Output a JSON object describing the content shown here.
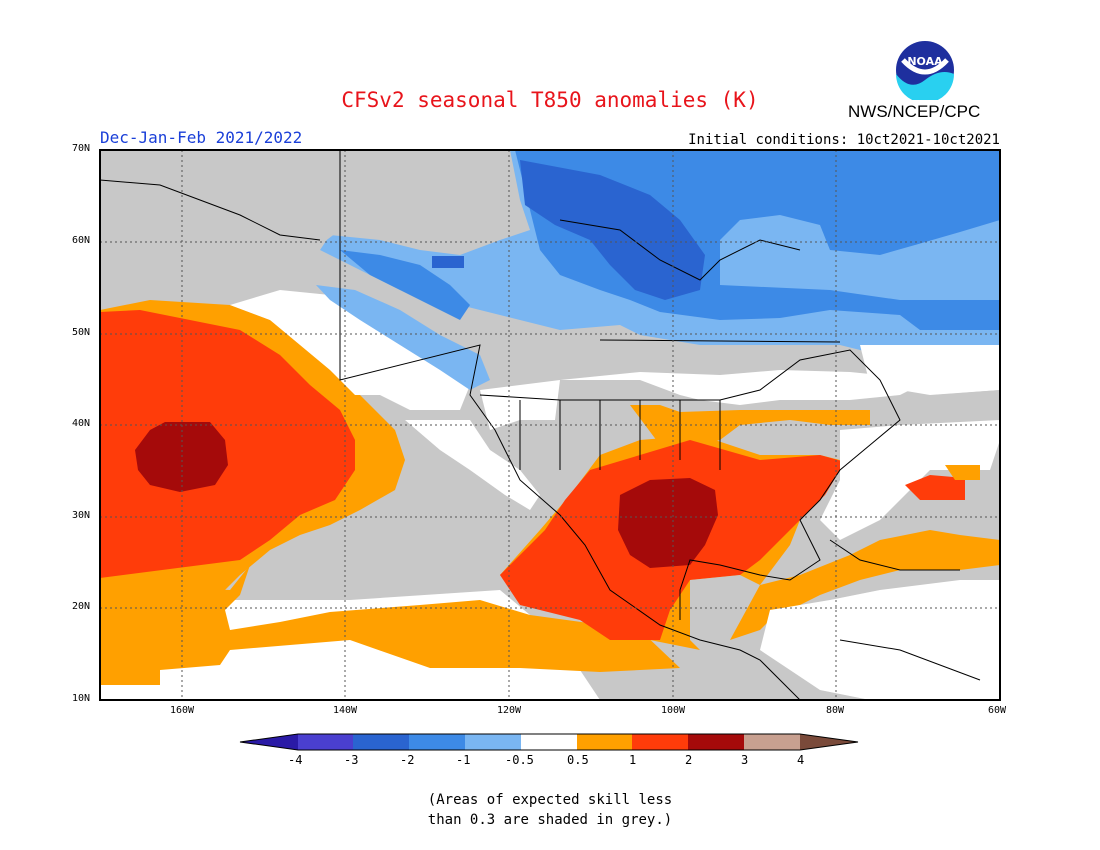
{
  "title": "CFSv2 seasonal T850 anomalies (K)",
  "agency": "NWS/NCEP/CPC",
  "logo_text": "NOAA",
  "season_label": "Dec-Jan-Feb 2021/2022",
  "init_label": "Initial conditions: 10ct2021-10ct2021",
  "lat_labels": [
    "70N",
    "60N",
    "50N",
    "40N",
    "30N",
    "20N",
    "10N"
  ],
  "lon_labels": [
    "160W",
    "140W",
    "120W",
    "100W",
    "80W",
    "60W"
  ],
  "colorbar": {
    "labels": [
      "-4",
      "-3",
      "-2",
      "-1",
      "-0.5",
      "0.5",
      "1",
      "2",
      "3",
      "4"
    ],
    "colors": [
      "#2a1aa6",
      "#4a3fcf",
      "#2a64d0",
      "#3d8ae6",
      "#7ab6f2",
      "#ffffff",
      "#ffa000",
      "#ff3c0a",
      "#a50a0a",
      "#c8a090",
      "#7a4a3a"
    ]
  },
  "note_line1": "(Areas of expected skill less",
  "note_line2": "than 0.3 are shaded in grey.)",
  "colors": {
    "grey": "#c8c8c8",
    "white": "#ffffff",
    "orange": "#ffa000",
    "red": "#ff3c0a",
    "darkred": "#a50a0a",
    "lightblue": "#7ab6f2",
    "blue": "#3d8ae6",
    "midblue": "#2a64d0"
  }
}
